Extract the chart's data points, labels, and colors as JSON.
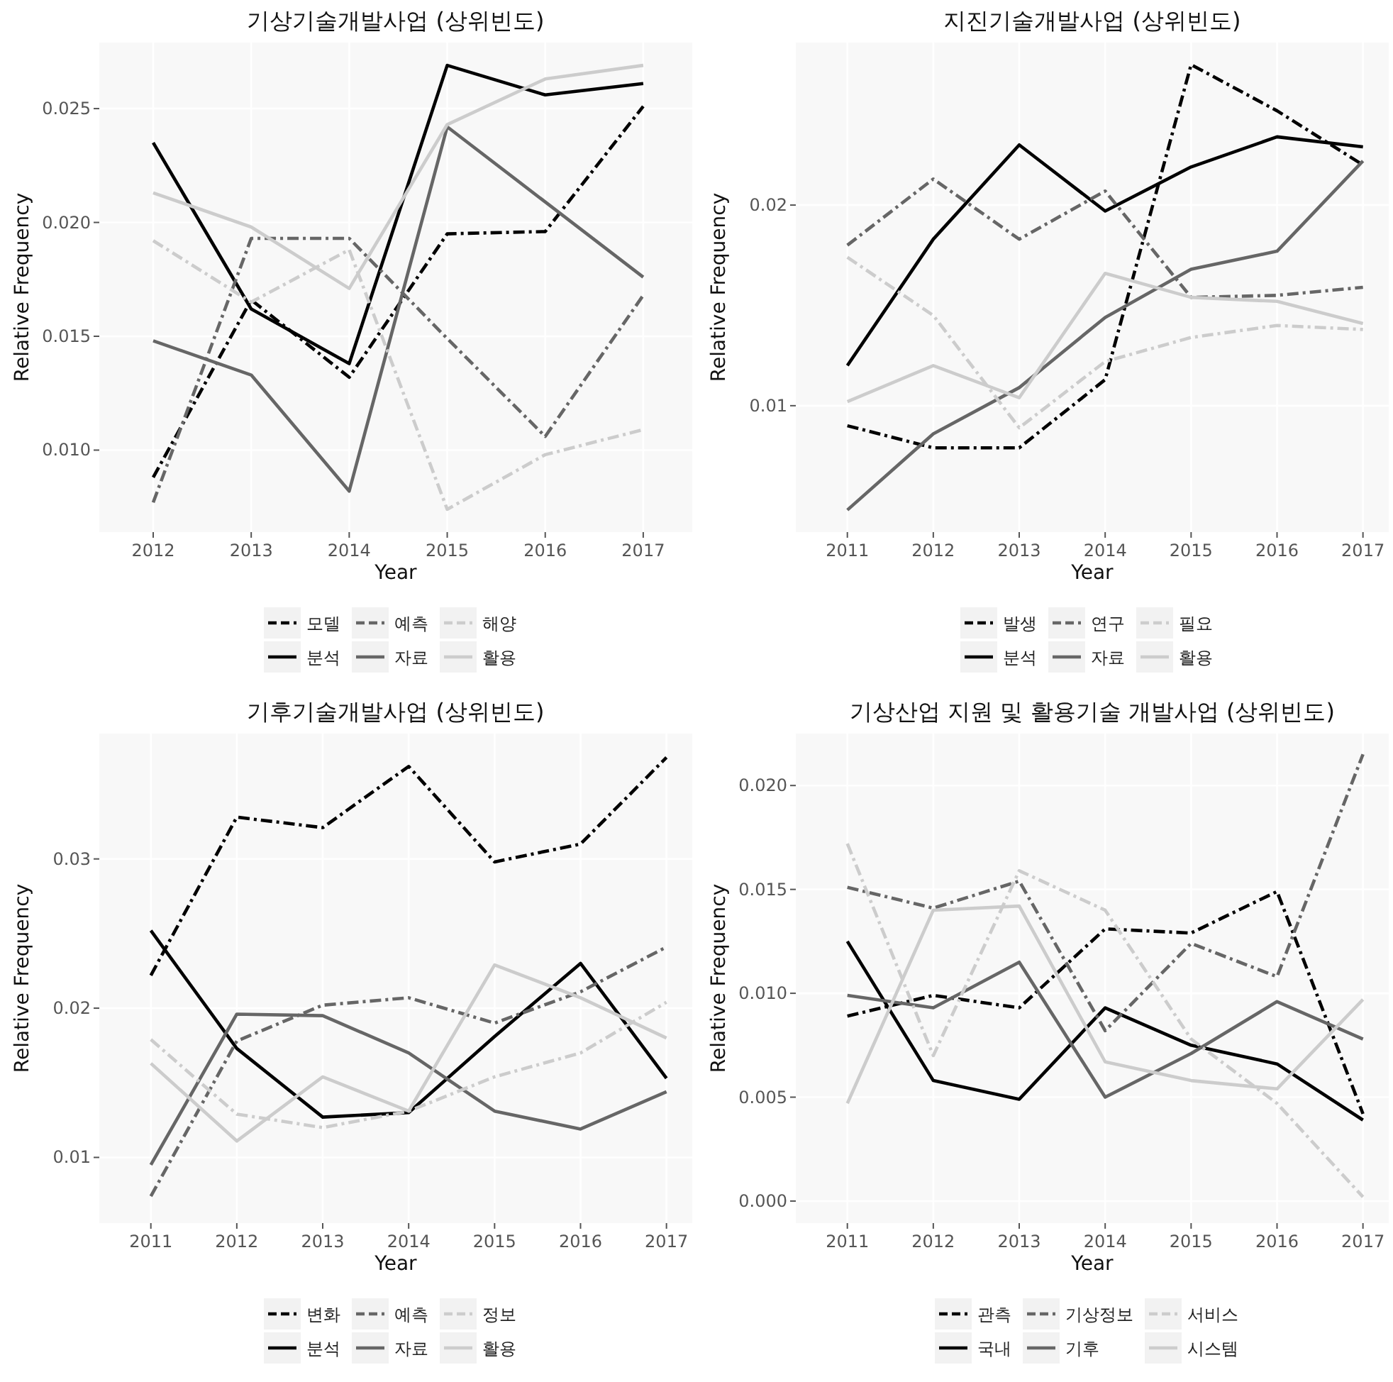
{
  "chart_data": [
    {
      "type": "line",
      "title": "기상기술개발사업 (상위빈도)",
      "xlabel": "Year",
      "ylabel": "Relative Frequency",
      "x": [
        2012,
        2013,
        2014,
        2015,
        2016,
        2017
      ],
      "xlim": [
        2011.45,
        2017.5
      ],
      "ylim": [
        0.0064,
        0.0279
      ],
      "xticks": [
        2012,
        2013,
        2014,
        2015,
        2016,
        2017
      ],
      "yticks": [
        {
          "value": 0.01,
          "label": "0.010"
        },
        0.015,
        {
          "value": 0.02,
          "label": "0.020"
        },
        0.025
      ],
      "grid": true,
      "legend": "bottom",
      "series": [
        {
          "name": "모델",
          "color": "#000000",
          "line_style": "dashed",
          "values": [
            0.0088,
            0.0166,
            0.0132,
            0.0195,
            0.0196,
            0.0251
          ]
        },
        {
          "name": "분석",
          "color": "#000000",
          "line_style": "solid",
          "values": [
            0.0235,
            0.0162,
            0.0138,
            0.0269,
            0.0256,
            0.0261
          ]
        },
        {
          "name": "예측",
          "color": "#666666",
          "line_style": "dashed",
          "values": [
            0.0077,
            0.0193,
            0.0193,
            0.0149,
            0.0106,
            0.0168
          ]
        },
        {
          "name": "자료",
          "color": "#666666",
          "line_style": "solid",
          "values": [
            0.0148,
            0.0133,
            0.0082,
            0.0242,
            0.0209,
            0.0176
          ]
        },
        {
          "name": "해양",
          "color": "#cccccc",
          "line_style": "dashed",
          "values": [
            0.0192,
            0.0165,
            0.0188,
            0.0074,
            0.0098,
            0.0109
          ]
        },
        {
          "name": "활용",
          "color": "#cccccc",
          "line_style": "solid",
          "values": [
            0.0213,
            0.0198,
            0.0171,
            0.0243,
            0.0263,
            0.0269
          ]
        }
      ]
    },
    {
      "type": "line",
      "title": "지진기술개발사업 (상위빈도)",
      "xlabel": "Year",
      "ylabel": "Relative Frequency",
      "x": [
        2011,
        2012,
        2013,
        2014,
        2015,
        2016,
        2017
      ],
      "xlim": [
        2010.4,
        2017.3
      ],
      "ylim": [
        0.0037,
        0.0281
      ],
      "xticks": [
        2011,
        2012,
        2013,
        2014,
        2015,
        2016,
        2017
      ],
      "yticks": [
        0.01,
        0.02
      ],
      "grid": true,
      "legend": "bottom",
      "series": [
        {
          "name": "발생",
          "color": "#000000",
          "line_style": "dashed",
          "values": [
            0.009,
            0.0079,
            0.0079,
            0.0113,
            0.027,
            0.0247,
            0.022
          ]
        },
        {
          "name": "분석",
          "color": "#000000",
          "line_style": "solid",
          "values": [
            0.012,
            0.0183,
            0.023,
            0.0197,
            0.0219,
            0.0234,
            0.0229
          ]
        },
        {
          "name": "연구",
          "color": "#666666",
          "line_style": "dashed",
          "values": [
            0.018,
            0.0213,
            0.0183,
            0.0207,
            0.0154,
            0.0155,
            0.0159
          ]
        },
        {
          "name": "자료",
          "color": "#666666",
          "line_style": "solid",
          "values": [
            0.0048,
            0.0086,
            0.0109,
            0.0144,
            0.0168,
            0.0177,
            0.0222
          ]
        },
        {
          "name": "필요",
          "color": "#cccccc",
          "line_style": "dashed",
          "values": [
            0.0174,
            0.0145,
            0.0089,
            0.0122,
            0.0134,
            0.014,
            0.0138
          ]
        },
        {
          "name": "활용",
          "color": "#cccccc",
          "line_style": "solid",
          "values": [
            0.0102,
            0.012,
            0.0104,
            0.0166,
            0.0154,
            0.0152,
            0.0141
          ]
        }
      ]
    },
    {
      "type": "line",
      "title": "기후기술개발사업 (상위빈도)",
      "xlabel": "Year",
      "ylabel": "Relative Frequency",
      "x": [
        2011,
        2012,
        2013,
        2014,
        2015,
        2016,
        2017
      ],
      "xlim": [
        2010.4,
        2017.3
      ],
      "ylim": [
        0.0056,
        0.0384
      ],
      "xticks": [
        2011,
        2012,
        2013,
        2014,
        2015,
        2016,
        2017
      ],
      "yticks": [
        0.01,
        0.02,
        0.03
      ],
      "grid": true,
      "legend": "bottom",
      "series": [
        {
          "name": "변화",
          "color": "#000000",
          "line_style": "dashed",
          "values": [
            0.0222,
            0.0328,
            0.0321,
            0.0362,
            0.0298,
            0.031,
            0.0368
          ]
        },
        {
          "name": "분석",
          "color": "#000000",
          "line_style": "solid",
          "values": [
            0.0252,
            0.0173,
            0.0127,
            0.013,
            0.0181,
            0.023,
            0.0153
          ]
        },
        {
          "name": "예측",
          "color": "#666666",
          "line_style": "dashed",
          "values": [
            0.0074,
            0.0178,
            0.0202,
            0.0207,
            0.019,
            0.0211,
            0.0241
          ]
        },
        {
          "name": "자료",
          "color": "#666666",
          "line_style": "solid",
          "values": [
            0.0095,
            0.0196,
            0.0195,
            0.017,
            0.0131,
            0.0119,
            0.0144
          ]
        },
        {
          "name": "정보",
          "color": "#cccccc",
          "line_style": "dashed",
          "values": [
            0.0179,
            0.0129,
            0.012,
            0.0131,
            0.0154,
            0.017,
            0.0204
          ]
        },
        {
          "name": "활용",
          "color": "#cccccc",
          "line_style": "solid",
          "values": [
            0.0163,
            0.0111,
            0.0154,
            0.0131,
            0.0229,
            0.0207,
            0.018
          ]
        }
      ]
    },
    {
      "type": "line",
      "title": "기상산업 지원 및 활용기술 개발사업 (상위빈도)",
      "xlabel": "Year",
      "ylabel": "Relative Frequency",
      "x": [
        2011,
        2012,
        2013,
        2014,
        2015,
        2016,
        2017
      ],
      "xlim": [
        2010.4,
        2017.3
      ],
      "ylim": [
        -0.00106,
        0.0225
      ],
      "xticks": [
        2011,
        2012,
        2013,
        2014,
        2015,
        2016,
        2017
      ],
      "yticks": [
        {
          "value": 0,
          "label": "0.000"
        },
        0.005,
        {
          "value": 0.01,
          "label": "0.010"
        },
        0.015,
        {
          "value": 0.02,
          "label": "0.020"
        }
      ],
      "grid": true,
      "legend": "bottom",
      "series": [
        {
          "name": "관측",
          "color": "#000000",
          "line_style": "dashed",
          "values": [
            0.0089,
            0.0099,
            0.0093,
            0.0131,
            0.0129,
            0.0149,
            0.0042
          ]
        },
        {
          "name": "국내",
          "color": "#000000",
          "line_style": "solid",
          "values": [
            0.0125,
            0.0058,
            0.0049,
            0.0093,
            0.0075,
            0.0066,
            0.0039
          ]
        },
        {
          "name": "기상정보",
          "color": "#666666",
          "line_style": "dashed",
          "values": [
            0.0151,
            0.0141,
            0.0154,
            0.0082,
            0.0124,
            0.0108,
            0.0215
          ]
        },
        {
          "name": "기후",
          "color": "#666666",
          "line_style": "solid",
          "values": [
            0.0099,
            0.0093,
            0.0115,
            0.005,
            0.0071,
            0.0096,
            0.0078
          ]
        },
        {
          "name": "서비스",
          "color": "#cccccc",
          "line_style": "dashed",
          "values": [
            0.0172,
            0.007,
            0.0159,
            0.014,
            0.0078,
            0.0047,
            0.0002
          ]
        },
        {
          "name": "시스템",
          "color": "#cccccc",
          "line_style": "solid",
          "values": [
            0.0047,
            0.014,
            0.0142,
            0.0067,
            0.0058,
            0.0054,
            0.0097
          ]
        }
      ]
    }
  ]
}
